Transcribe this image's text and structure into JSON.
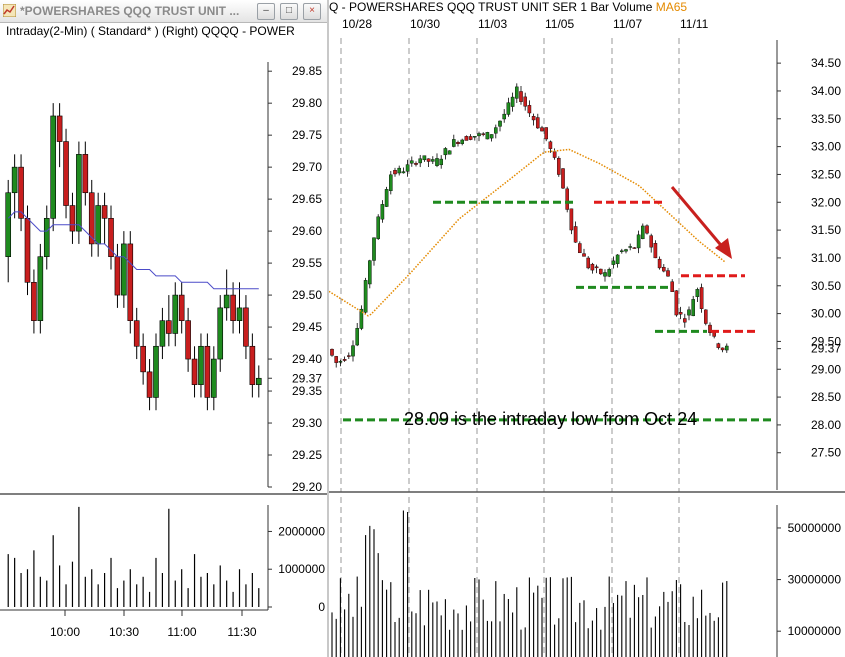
{
  "left_window": {
    "title": "*POWERSHARES QQQ TRUST UNIT ...",
    "buttons": {
      "minimize": "–",
      "maximize": "□",
      "close": "×"
    },
    "subtitle": "Intraday(2-Min) ( Standard* )  (Right)  QQQQ - POWER"
  },
  "right_window": {
    "title": "Q - POWERSHARES QQQ TRUST UNIT SER 1  Bar  Volume ",
    "ma_label": "MA65"
  },
  "chart_data": [
    {
      "type": "candlestick",
      "name": "intraday-price",
      "yticks": [
        "29.85",
        "29.80",
        "29.75",
        "29.70",
        "29.65",
        "29.60",
        "29.55",
        "29.50",
        "29.45",
        "29.40",
        "29.37",
        "29.35",
        "29.30",
        "29.25",
        "29.20"
      ],
      "ylim": [
        29.2,
        29.88
      ],
      "last_price": 29.37,
      "candles": [
        [
          29.56,
          29.68,
          29.52,
          29.66
        ],
        [
          29.66,
          29.72,
          29.62,
          29.7
        ],
        [
          29.7,
          29.72,
          29.6,
          29.62
        ],
        [
          29.62,
          29.64,
          29.5,
          29.52
        ],
        [
          29.52,
          29.54,
          29.44,
          29.46
        ],
        [
          29.46,
          29.58,
          29.44,
          29.56
        ],
        [
          29.56,
          29.64,
          29.54,
          29.62
        ],
        [
          29.62,
          29.8,
          29.6,
          29.78
        ],
        [
          29.78,
          29.8,
          29.7,
          29.74
        ],
        [
          29.74,
          29.76,
          29.62,
          29.64
        ],
        [
          29.64,
          29.66,
          29.58,
          29.6
        ],
        [
          29.6,
          29.74,
          29.58,
          29.72
        ],
        [
          29.72,
          29.74,
          29.64,
          29.66
        ],
        [
          29.66,
          29.68,
          29.56,
          29.58
        ],
        [
          29.58,
          29.66,
          29.56,
          29.64
        ],
        [
          29.64,
          29.66,
          29.58,
          29.62
        ],
        [
          29.62,
          29.64,
          29.54,
          29.56
        ],
        [
          29.56,
          29.58,
          29.48,
          29.5
        ],
        [
          29.5,
          29.6,
          29.48,
          29.58
        ],
        [
          29.58,
          29.6,
          29.44,
          29.46
        ],
        [
          29.46,
          29.48,
          29.4,
          29.42
        ],
        [
          29.42,
          29.44,
          29.36,
          29.38
        ],
        [
          29.38,
          29.4,
          29.32,
          29.34
        ],
        [
          29.34,
          29.44,
          29.32,
          29.42
        ],
        [
          29.42,
          29.48,
          29.4,
          29.46
        ],
        [
          29.46,
          29.5,
          29.42,
          29.44
        ],
        [
          29.44,
          29.52,
          29.42,
          29.5
        ],
        [
          29.5,
          29.52,
          29.44,
          29.46
        ],
        [
          29.46,
          29.48,
          29.38,
          29.4
        ],
        [
          29.4,
          29.42,
          29.34,
          29.36
        ],
        [
          29.36,
          29.44,
          29.34,
          29.42
        ],
        [
          29.42,
          29.44,
          29.32,
          29.34
        ],
        [
          29.34,
          29.42,
          29.32,
          29.4
        ],
        [
          29.4,
          29.5,
          29.38,
          29.48
        ],
        [
          29.48,
          29.54,
          29.46,
          29.5
        ],
        [
          29.5,
          29.52,
          29.44,
          29.46
        ],
        [
          29.46,
          29.52,
          29.44,
          29.48
        ],
        [
          29.48,
          29.5,
          29.4,
          29.42
        ],
        [
          29.42,
          29.44,
          29.34,
          29.36
        ],
        [
          29.36,
          29.39,
          29.34,
          29.37
        ]
      ],
      "ma": [
        29.62,
        29.63,
        29.63,
        29.62,
        29.61,
        29.6,
        29.6,
        29.61,
        29.61,
        29.61,
        29.61,
        29.61,
        29.6,
        29.59,
        29.58,
        29.58,
        29.57,
        29.56,
        29.56,
        29.55,
        29.54,
        29.54,
        29.54,
        29.53,
        29.53,
        29.53,
        29.53,
        29.52,
        29.52,
        29.52,
        29.52,
        29.52,
        29.51,
        29.51,
        29.51,
        29.51,
        29.51,
        29.51,
        29.51,
        29.51
      ]
    },
    {
      "type": "bar",
      "name": "intraday-volume",
      "yticks": [
        "2000000",
        "1000000",
        "0"
      ],
      "ylim": [
        0,
        2700000
      ],
      "xticks": [
        "10:00",
        "10:30",
        "11:00",
        "11:30"
      ],
      "values": [
        1400000,
        1300000,
        900000,
        1000000,
        1500000,
        800000,
        700000,
        1900000,
        1100000,
        600000,
        1200000,
        2650000,
        800000,
        1000000,
        600000,
        900000,
        1300000,
        500000,
        700000,
        1000000,
        600000,
        800000,
        400000,
        1300000,
        900000,
        2600000,
        700000,
        1000000,
        500000,
        1400000,
        800000,
        900000,
        600000,
        1100000,
        700000,
        400000,
        1000000,
        600000,
        900000,
        500000
      ]
    },
    {
      "type": "candlestick",
      "name": "daily-price",
      "yticks": [
        "34.50",
        "34.00",
        "33.50",
        "33.00",
        "32.50",
        "32.00",
        "31.50",
        "31.00",
        "30.50",
        "30.00",
        "29.50",
        "29.37",
        "29.00",
        "28.50",
        "28.00",
        "27.50"
      ],
      "ylim": [
        27.1,
        34.7
      ],
      "xticks": [
        "10/28",
        "10/30",
        "11/03",
        "11/05",
        "11/07",
        "11/11"
      ],
      "last_price": 29.37,
      "annotation": "28.09 is the intraday low from Oct 24",
      "support_level": 28.09,
      "ma_label": "MA65"
    },
    {
      "type": "bar",
      "name": "daily-volume",
      "yticks": [
        "50000000",
        "30000000",
        "10000000"
      ],
      "ylim": [
        0,
        62000000
      ]
    }
  ],
  "colors": {
    "up": "#1f8a1f",
    "down": "#c81e1e",
    "ma_left": "#4b4bc8",
    "ma_right": "#e48a00",
    "support": "#1f8a1f",
    "resistance": "#e01b1b",
    "arrow": "#c8201e"
  }
}
